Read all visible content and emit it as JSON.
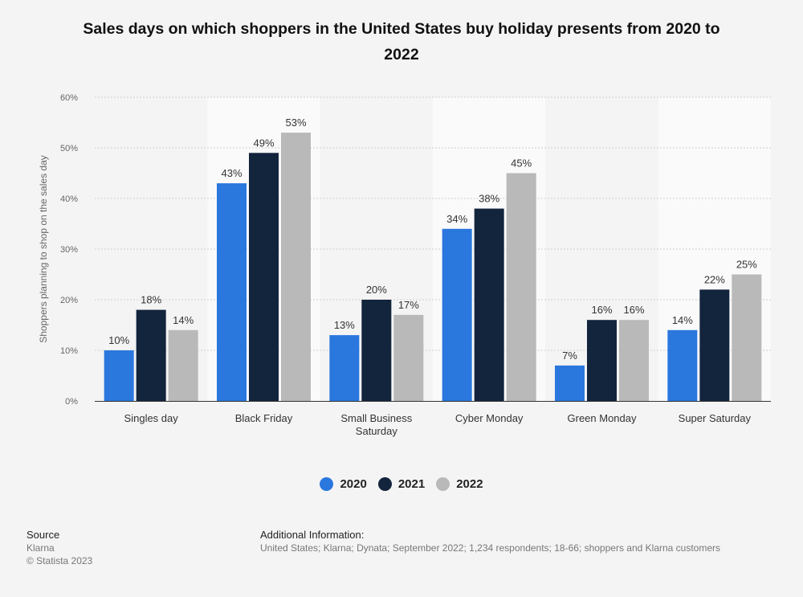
{
  "title_line1": "Sales days on which shoppers in the United States buy holiday presents from 2020 to",
  "title_line2": "2022",
  "chart_data": {
    "type": "bar",
    "title": "Sales days on which shoppers in the United States buy holiday presents from 2020 to 2022",
    "xlabel": "",
    "ylabel": "Shoppers planning to shop on the sales day",
    "ylim": [
      0,
      60
    ],
    "yticks": [
      0,
      10,
      20,
      30,
      40,
      50,
      60
    ],
    "ytick_labels": [
      "0%",
      "10%",
      "20%",
      "30%",
      "40%",
      "50%",
      "60%"
    ],
    "categories": [
      [
        "Singles day"
      ],
      [
        "Black Friday"
      ],
      [
        "Small Business",
        "Saturday"
      ],
      [
        "Cyber Monday"
      ],
      [
        "Green Monday"
      ],
      [
        "Super Saturday"
      ]
    ],
    "series": [
      {
        "name": "2020",
        "color": "#2a77de",
        "values": [
          10,
          43,
          13,
          34,
          7,
          14
        ]
      },
      {
        "name": "2021",
        "color": "#13243d",
        "values": [
          18,
          49,
          20,
          38,
          16,
          22
        ]
      },
      {
        "name": "2022",
        "color": "#b9b9b9",
        "values": [
          14,
          53,
          17,
          45,
          16,
          25
        ]
      }
    ],
    "value_suffix": "%",
    "grid": true,
    "legend_position": "bottom-center"
  },
  "source": {
    "heading": "Source",
    "lines": [
      "Klarna",
      "© Statista 2023"
    ]
  },
  "additional_info": {
    "heading": "Additional Information:",
    "text": "United States; Klarna; Dynata; September 2022; 1,234 respondents; 18-66; shoppers and Klarna customers"
  }
}
